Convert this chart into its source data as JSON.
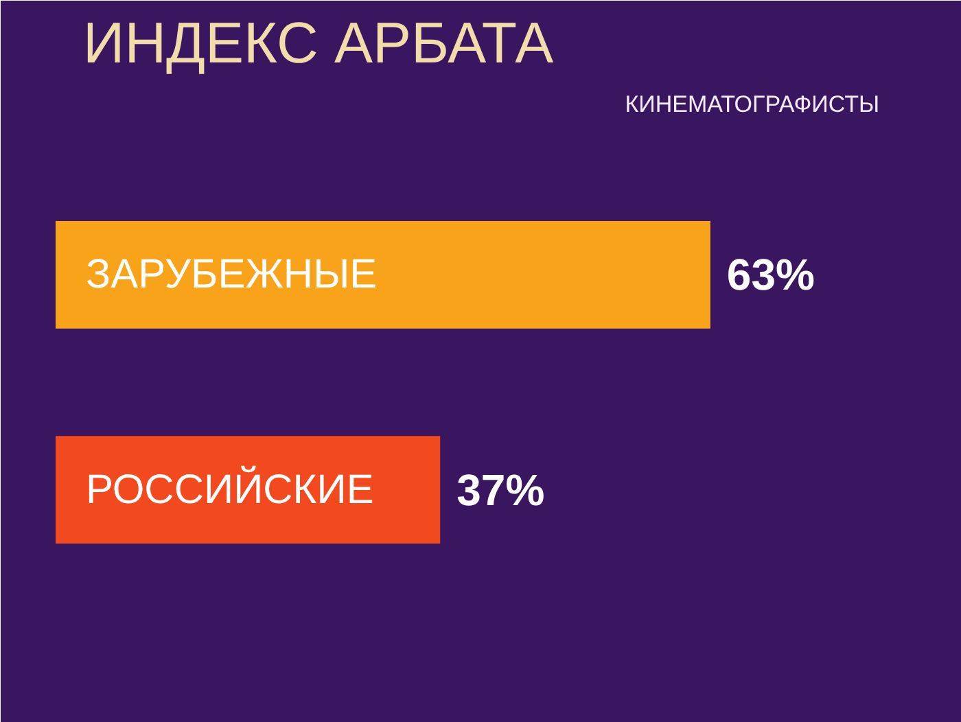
{
  "chart_data": {
    "type": "bar",
    "orientation": "horizontal",
    "title": "ИНДЕКС АРБАТА",
    "subtitle": "КИНЕМАТОГРАФИСТЫ",
    "categories": [
      "ЗАРУБЕЖНЫЕ",
      "РОССИЙСКИЕ"
    ],
    "values": [
      63,
      37
    ],
    "colors": [
      "#f9a31b",
      "#f24a1e"
    ],
    "value_labels": [
      "63%",
      "37%"
    ]
  }
}
